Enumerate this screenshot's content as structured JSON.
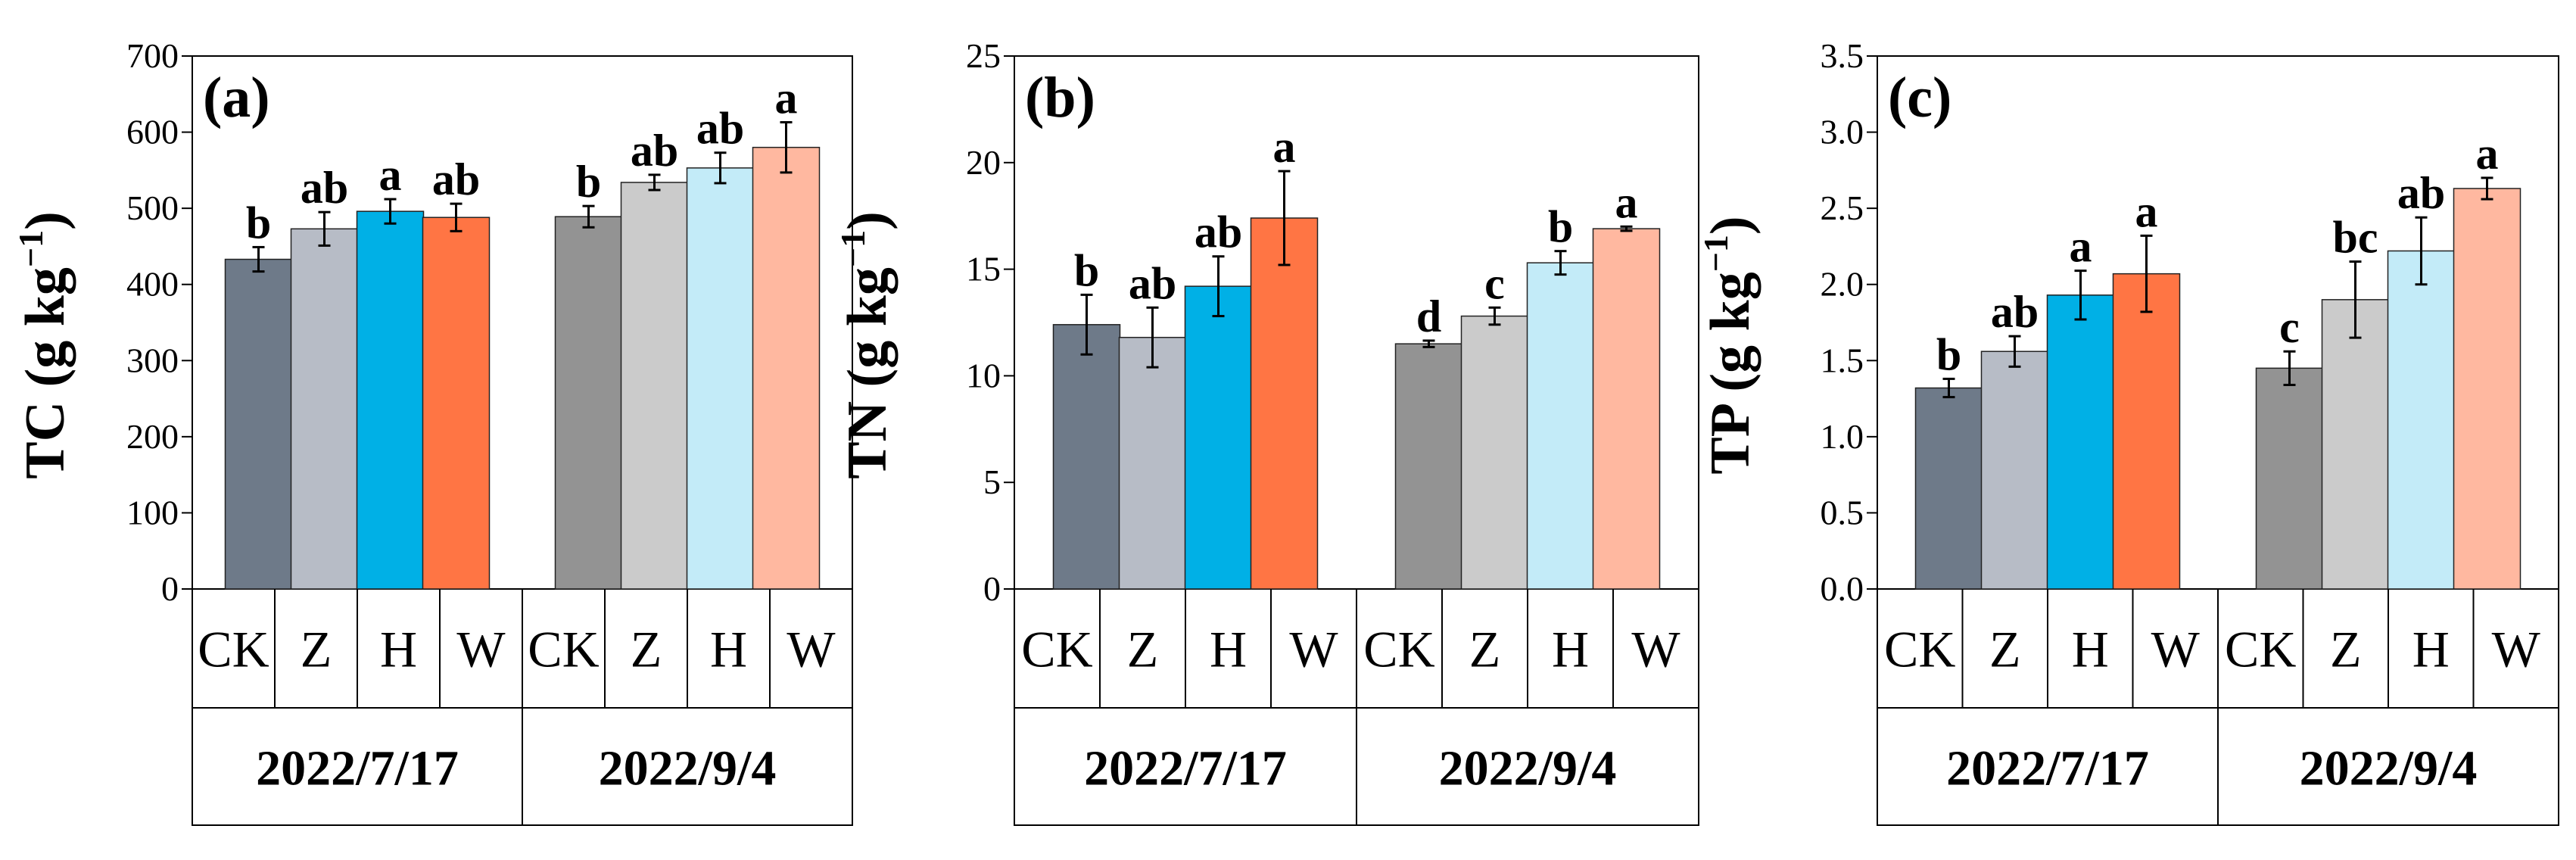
{
  "chart_data": [
    {
      "type": "bar",
      "panel_label": "(a)",
      "ylabel_text": "TC (g kg",
      "ylabel_sup": "−1",
      "ylabel_close": ")",
      "ylim": [
        0,
        700
      ],
      "yticks": [
        "0",
        "100",
        "200",
        "300",
        "400",
        "500",
        "600",
        "700"
      ],
      "ytick_values": [
        0,
        100,
        200,
        300,
        400,
        500,
        600,
        700
      ],
      "groups": [
        {
          "date": "2022/7/17",
          "bars": [
            {
              "treatment": "CK",
              "value": 433,
              "error": 16,
              "sig": "b",
              "color": "#6e7a89"
            },
            {
              "treatment": "Z",
              "value": 473,
              "error": 22,
              "sig": "ab",
              "color": "#b7bcc6"
            },
            {
              "treatment": "H",
              "value": 496,
              "error": 16,
              "sig": "a",
              "color": "#00b0e6"
            },
            {
              "treatment": "W",
              "value": 488,
              "error": 18,
              "sig": "ab",
              "color": "#ff7544"
            }
          ]
        },
        {
          "date": "2022/9/4",
          "bars": [
            {
              "treatment": "CK",
              "value": 489,
              "error": 14,
              "sig": "b",
              "color": "#939393"
            },
            {
              "treatment": "Z",
              "value": 534,
              "error": 10,
              "sig": "ab",
              "color": "#cbcbcb"
            },
            {
              "treatment": "H",
              "value": 553,
              "error": 20,
              "sig": "ab",
              "color": "#c3ebf8"
            },
            {
              "treatment": "W",
              "value": 580,
              "error": 33,
              "sig": "a",
              "color": "#ffb8a0"
            }
          ]
        }
      ]
    },
    {
      "type": "bar",
      "panel_label": "(b)",
      "ylabel_text": "TN (g kg",
      "ylabel_sup": "−1",
      "ylabel_close": ")",
      "ylim": [
        0,
        25
      ],
      "yticks": [
        "0",
        "5",
        "10",
        "15",
        "20",
        "25"
      ],
      "ytick_values": [
        0,
        5,
        10,
        15,
        20,
        25
      ],
      "groups": [
        {
          "date": "2022/7/17",
          "bars": [
            {
              "treatment": "CK",
              "value": 12.4,
              "error": 1.4,
              "sig": "b",
              "color": "#6e7a89"
            },
            {
              "treatment": "Z",
              "value": 11.8,
              "error": 1.4,
              "sig": "ab",
              "color": "#b7bcc6"
            },
            {
              "treatment": "H",
              "value": 14.2,
              "error": 1.4,
              "sig": "ab",
              "color": "#00b0e6"
            },
            {
              "treatment": "W",
              "value": 17.4,
              "error": 2.2,
              "sig": "a",
              "color": "#ff7544"
            }
          ]
        },
        {
          "date": "2022/9/4",
          "bars": [
            {
              "treatment": "CK",
              "value": 11.5,
              "error": 0.15,
              "sig": "d",
              "color": "#939393"
            },
            {
              "treatment": "Z",
              "value": 12.8,
              "error": 0.4,
              "sig": "c",
              "color": "#cbcbcb"
            },
            {
              "treatment": "H",
              "value": 15.3,
              "error": 0.55,
              "sig": "b",
              "color": "#c3ebf8"
            },
            {
              "treatment": "W",
              "value": 16.9,
              "error": 0.1,
              "sig": "a",
              "color": "#ffb8a0"
            }
          ]
        }
      ]
    },
    {
      "type": "bar",
      "panel_label": "(c)",
      "ylabel_text": "TP (g kg",
      "ylabel_sup": "−1",
      "ylabel_close": ")",
      "ylim": [
        0,
        3.5
      ],
      "yticks": [
        "0.0",
        "0.5",
        "1.0",
        "1.5",
        "2.0",
        "2.5",
        "3.0",
        "3.5"
      ],
      "ytick_values": [
        0,
        0.5,
        1.0,
        1.5,
        2.0,
        2.5,
        3.0,
        3.5
      ],
      "groups": [
        {
          "date": "2022/7/17",
          "bars": [
            {
              "treatment": "CK",
              "value": 1.32,
              "error": 0.06,
              "sig": "b",
              "color": "#6e7a89"
            },
            {
              "treatment": "Z",
              "value": 1.56,
              "error": 0.1,
              "sig": "ab",
              "color": "#b7bcc6"
            },
            {
              "treatment": "H",
              "value": 1.93,
              "error": 0.16,
              "sig": "a",
              "color": "#00b0e6"
            },
            {
              "treatment": "W",
              "value": 2.07,
              "error": 0.25,
              "sig": "a",
              "color": "#ff7544"
            }
          ]
        },
        {
          "date": "2022/9/4",
          "bars": [
            {
              "treatment": "CK",
              "value": 1.45,
              "error": 0.11,
              "sig": "c",
              "color": "#939393"
            },
            {
              "treatment": "Z",
              "value": 1.9,
              "error": 0.25,
              "sig": "bc",
              "color": "#cbcbcb"
            },
            {
              "treatment": "H",
              "value": 2.22,
              "error": 0.22,
              "sig": "ab",
              "color": "#c3ebf8"
            },
            {
              "treatment": "W",
              "value": 2.63,
              "error": 0.07,
              "sig": "a",
              "color": "#ffb8a0"
            }
          ]
        }
      ]
    }
  ]
}
